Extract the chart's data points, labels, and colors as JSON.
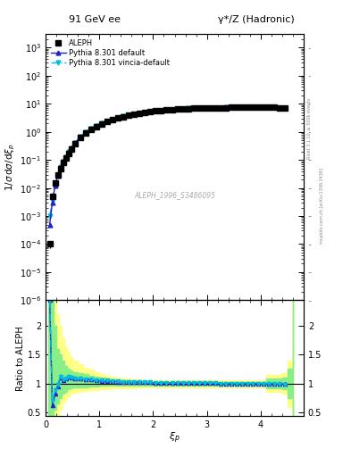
{
  "title_left": "91 GeV ee",
  "title_right": "γ*/Z (Hadronic)",
  "ylabel_main": "1/σ dσ/dξ_p",
  "ylabel_ratio": "Ratio to ALEPH",
  "xlabel": "ξ_p",
  "watermark": "ALEPH_1996_S3486095",
  "rivet_label": "Rivet 3.1.10, ≥ 500k events",
  "arxiv_label": "mcplots.cern.ch [arXiv:1306.3436]",
  "ylim_main": [
    1e-06,
    3000
  ],
  "ylim_ratio": [
    0.44,
    2.44
  ],
  "xlim": [
    0.0,
    4.8
  ],
  "legend_entries": [
    "ALEPH",
    "Pythia 8.301 default",
    "Pythia 8.301 vincia-default"
  ],
  "aleph_x": [
    0.075,
    0.125,
    0.175,
    0.225,
    0.275,
    0.325,
    0.375,
    0.425,
    0.475,
    0.55,
    0.65,
    0.75,
    0.85,
    0.95,
    1.05,
    1.15,
    1.25,
    1.35,
    1.45,
    1.55,
    1.65,
    1.75,
    1.85,
    1.95,
    2.05,
    2.15,
    2.25,
    2.35,
    2.45,
    2.55,
    2.65,
    2.75,
    2.85,
    2.95,
    3.05,
    3.15,
    3.25,
    3.35,
    3.45,
    3.55,
    3.65,
    3.75,
    3.85,
    3.95,
    4.05,
    4.15,
    4.25,
    4.35,
    4.45
  ],
  "aleph_y": [
    0.0001,
    0.005,
    0.015,
    0.03,
    0.05,
    0.08,
    0.12,
    0.17,
    0.24,
    0.38,
    0.62,
    0.9,
    1.2,
    1.55,
    1.92,
    2.3,
    2.7,
    3.1,
    3.5,
    3.9,
    4.25,
    4.62,
    4.95,
    5.25,
    5.55,
    5.8,
    6.05,
    6.25,
    6.45,
    6.6,
    6.75,
    6.88,
    6.98,
    7.08,
    7.15,
    7.22,
    7.28,
    7.33,
    7.38,
    7.42,
    7.44,
    7.46,
    7.47,
    7.48,
    7.45,
    7.42,
    7.38,
    7.28,
    7.1
  ],
  "aleph_yerr": [
    3e-05,
    0.0003,
    0.0008,
    0.0015,
    0.0025,
    0.003,
    0.004,
    0.005,
    0.007,
    0.01,
    0.013,
    0.017,
    0.02,
    0.025,
    0.03,
    0.035,
    0.04,
    0.045,
    0.05,
    0.055,
    0.06,
    0.065,
    0.07,
    0.075,
    0.08,
    0.085,
    0.09,
    0.095,
    0.1,
    0.1,
    0.11,
    0.11,
    0.11,
    0.12,
    0.12,
    0.12,
    0.12,
    0.12,
    0.13,
    0.13,
    0.13,
    0.13,
    0.13,
    0.13,
    0.13,
    0.13,
    0.14,
    0.14,
    0.15
  ],
  "py_default_x": [
    0.075,
    0.125,
    0.175,
    0.225,
    0.275,
    0.325,
    0.375,
    0.425,
    0.475,
    0.55,
    0.65,
    0.75,
    0.85,
    0.95,
    1.05,
    1.15,
    1.25,
    1.35,
    1.45,
    1.55,
    1.65,
    1.75,
    1.85,
    1.95,
    2.05,
    2.15,
    2.25,
    2.35,
    2.45,
    2.55,
    2.65,
    2.75,
    2.85,
    2.95,
    3.05,
    3.15,
    3.25,
    3.35,
    3.45,
    3.55,
    3.65,
    3.75,
    3.85,
    3.95,
    4.05,
    4.15,
    4.25,
    4.35,
    4.45
  ],
  "py_default_y": [
    0.0005,
    0.003,
    0.012,
    0.028,
    0.055,
    0.085,
    0.13,
    0.19,
    0.27,
    0.41,
    0.67,
    0.96,
    1.28,
    1.63,
    2.0,
    2.4,
    2.8,
    3.2,
    3.6,
    4.0,
    4.36,
    4.72,
    5.04,
    5.34,
    5.62,
    5.88,
    6.12,
    6.33,
    6.52,
    6.68,
    6.82,
    6.94,
    7.04,
    7.13,
    7.2,
    7.26,
    7.31,
    7.36,
    7.4,
    7.43,
    7.45,
    7.46,
    7.47,
    7.47,
    7.44,
    7.41,
    7.36,
    7.25,
    7.05
  ],
  "py_vincia_x": [
    0.075,
    0.125,
    0.175,
    0.225,
    0.275,
    0.325,
    0.375,
    0.425,
    0.475,
    0.55,
    0.65,
    0.75,
    0.85,
    0.95,
    1.05,
    1.15,
    1.25,
    1.35,
    1.45,
    1.55,
    1.65,
    1.75,
    1.85,
    1.95,
    2.05,
    2.15,
    2.25,
    2.35,
    2.45,
    2.55,
    2.65,
    2.75,
    2.85,
    2.95,
    3.05,
    3.15,
    3.25,
    3.35,
    3.45,
    3.55,
    3.65,
    3.75,
    3.85,
    3.95,
    4.05,
    4.15,
    4.25,
    4.35,
    4.45
  ],
  "py_vincia_y": [
    0.001,
    0.0035,
    0.013,
    0.029,
    0.056,
    0.086,
    0.13,
    0.19,
    0.27,
    0.41,
    0.67,
    0.96,
    1.29,
    1.64,
    2.01,
    2.41,
    2.81,
    3.21,
    3.61,
    4.01,
    4.37,
    4.73,
    5.05,
    5.35,
    5.63,
    5.89,
    6.13,
    6.34,
    6.53,
    6.69,
    6.83,
    6.95,
    7.05,
    7.14,
    7.21,
    7.27,
    7.32,
    7.37,
    7.41,
    7.44,
    7.46,
    7.47,
    7.48,
    7.48,
    7.45,
    7.42,
    7.37,
    7.26,
    7.06
  ],
  "ratio_x": [
    0.075,
    0.125,
    0.175,
    0.225,
    0.275,
    0.325,
    0.375,
    0.425,
    0.475,
    0.55,
    0.65,
    0.75,
    0.85,
    0.95,
    1.05,
    1.15,
    1.25,
    1.35,
    1.45,
    1.55,
    1.65,
    1.75,
    1.85,
    1.95,
    2.05,
    2.15,
    2.25,
    2.35,
    2.45,
    2.55,
    2.65,
    2.75,
    2.85,
    2.95,
    3.05,
    3.15,
    3.25,
    3.35,
    3.45,
    3.55,
    3.65,
    3.75,
    3.85,
    3.95,
    4.05,
    4.15,
    4.25,
    4.35,
    4.45
  ],
  "ratio_default_y": [
    2.44,
    0.62,
    0.82,
    0.95,
    1.1,
    1.06,
    1.08,
    1.12,
    1.1,
    1.08,
    1.08,
    1.07,
    1.07,
    1.05,
    1.04,
    1.04,
    1.04,
    1.03,
    1.03,
    1.03,
    1.03,
    1.02,
    1.02,
    1.02,
    1.01,
    1.01,
    1.01,
    1.01,
    1.01,
    1.01,
    1.01,
    1.01,
    1.01,
    1.01,
    1.01,
    1.01,
    1.0,
    1.0,
    1.0,
    1.0,
    1.0,
    1.0,
    1.0,
    1.0,
    0.999,
    0.998,
    0.997,
    0.994,
    0.993
  ],
  "ratio_vincia_y": [
    2.44,
    0.7,
    0.88,
    0.98,
    1.12,
    1.075,
    1.08,
    1.12,
    1.1,
    1.08,
    1.08,
    1.07,
    1.07,
    1.06,
    1.05,
    1.05,
    1.04,
    1.04,
    1.03,
    1.03,
    1.03,
    1.02,
    1.02,
    1.02,
    1.01,
    1.01,
    1.01,
    1.01,
    1.01,
    1.01,
    1.01,
    1.01,
    1.01,
    1.01,
    1.01,
    1.01,
    1.0,
    1.0,
    1.0,
    1.0,
    1.0,
    1.0,
    1.0,
    1.0,
    0.999,
    0.999,
    0.998,
    0.994,
    0.986
  ],
  "ratio_band_x": [
    0.05,
    0.1,
    0.15,
    0.2,
    0.25,
    0.3,
    0.35,
    0.4,
    0.45,
    0.5,
    0.6,
    0.7,
    0.8,
    0.9,
    1.0,
    1.1,
    1.2,
    1.3,
    1.4,
    1.5,
    1.6,
    1.7,
    1.8,
    1.9,
    2.0,
    2.1,
    2.2,
    2.3,
    2.4,
    2.5,
    2.6,
    2.7,
    2.8,
    2.9,
    3.0,
    3.1,
    3.2,
    3.3,
    3.4,
    3.5,
    3.6,
    3.7,
    3.8,
    3.9,
    4.0,
    4.1,
    4.2,
    4.3,
    4.4,
    4.5,
    4.6
  ],
  "ratio_band_green_lo": [
    0.44,
    0.44,
    0.55,
    0.65,
    0.75,
    0.82,
    0.86,
    0.9,
    0.92,
    0.93,
    0.94,
    0.94,
    0.95,
    0.95,
    0.96,
    0.96,
    0.96,
    0.97,
    0.97,
    0.97,
    0.97,
    0.97,
    0.97,
    0.97,
    0.97,
    0.97,
    0.97,
    0.97,
    0.97,
    0.97,
    0.97,
    0.97,
    0.97,
    0.97,
    0.97,
    0.97,
    0.97,
    0.97,
    0.97,
    0.97,
    0.97,
    0.97,
    0.97,
    0.97,
    0.97,
    0.92,
    0.92,
    0.92,
    0.9,
    0.75,
    0.44
  ],
  "ratio_band_green_hi": [
    2.44,
    2.44,
    2.0,
    1.6,
    1.5,
    1.4,
    1.3,
    1.25,
    1.22,
    1.2,
    1.18,
    1.16,
    1.14,
    1.12,
    1.1,
    1.08,
    1.07,
    1.06,
    1.05,
    1.05,
    1.04,
    1.04,
    1.03,
    1.03,
    1.03,
    1.03,
    1.03,
    1.03,
    1.03,
    1.03,
    1.03,
    1.03,
    1.03,
    1.03,
    1.03,
    1.03,
    1.03,
    1.03,
    1.03,
    1.03,
    1.03,
    1.03,
    1.03,
    1.03,
    1.03,
    1.08,
    1.08,
    1.08,
    1.1,
    1.25,
    2.44
  ],
  "ratio_band_yellow_lo": [
    0.44,
    0.44,
    0.44,
    0.4,
    0.55,
    0.65,
    0.72,
    0.78,
    0.82,
    0.84,
    0.86,
    0.87,
    0.88,
    0.89,
    0.9,
    0.9,
    0.91,
    0.91,
    0.92,
    0.92,
    0.92,
    0.93,
    0.93,
    0.93,
    0.93,
    0.93,
    0.93,
    0.93,
    0.93,
    0.93,
    0.93,
    0.93,
    0.93,
    0.93,
    0.93,
    0.93,
    0.93,
    0.93,
    0.93,
    0.93,
    0.93,
    0.93,
    0.93,
    0.93,
    0.93,
    0.85,
    0.85,
    0.85,
    0.82,
    0.6,
    0.44
  ],
  "ratio_band_yellow_hi": [
    2.44,
    2.44,
    2.44,
    2.2,
    2.0,
    1.8,
    1.65,
    1.55,
    1.45,
    1.4,
    1.34,
    1.28,
    1.24,
    1.2,
    1.16,
    1.14,
    1.12,
    1.1,
    1.09,
    1.08,
    1.07,
    1.07,
    1.06,
    1.06,
    1.06,
    1.06,
    1.06,
    1.06,
    1.06,
    1.06,
    1.06,
    1.06,
    1.06,
    1.06,
    1.06,
    1.06,
    1.06,
    1.06,
    1.06,
    1.06,
    1.06,
    1.06,
    1.06,
    1.06,
    1.06,
    1.15,
    1.15,
    1.15,
    1.18,
    1.4,
    2.44
  ],
  "color_aleph": "#000000",
  "color_default": "#2222cc",
  "color_vincia": "#00bbdd",
  "color_band_green": "#88ee88",
  "color_band_yellow": "#ffff88",
  "bg_color": "#ffffff"
}
